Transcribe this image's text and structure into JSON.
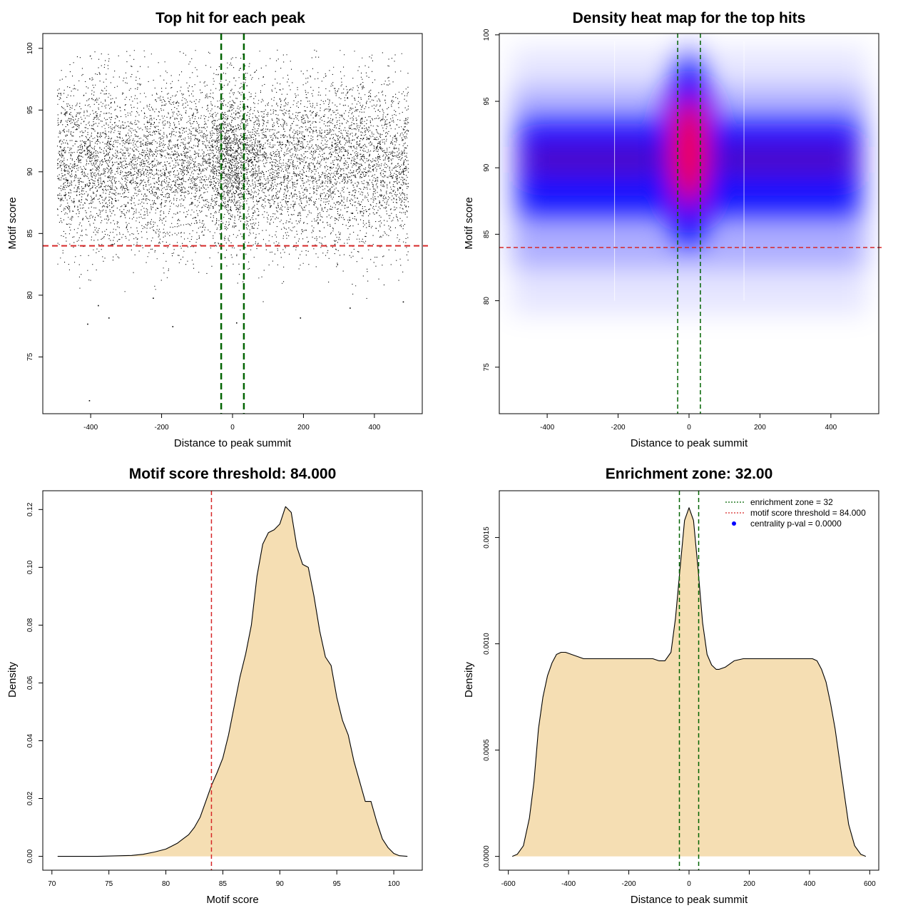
{
  "colors": {
    "zone_line": "#006400",
    "threshold_line": "#d62728",
    "density_fill": "#f5deb3",
    "points": "#000000",
    "heat_low": "#ffffff",
    "heat_mid": "#0000ff",
    "heat_high": "#ff0000",
    "legend_dot": "#0000ff"
  },
  "chart_data": [
    {
      "id": "scatter",
      "type": "scatter",
      "title": "Top hit for each peak",
      "xlabel": "Distance to peak summit",
      "ylabel": "Motif score",
      "xlim": [
        -535,
        535
      ],
      "ylim": [
        70.4,
        101.2
      ],
      "xticks": [
        -400,
        -200,
        0,
        200,
        400
      ],
      "yticks": [
        75,
        80,
        85,
        90,
        95,
        100
      ],
      "zone_lines": [
        -32,
        32
      ],
      "threshold": 84.0,
      "x_range_of_points": [
        -495,
        495
      ],
      "score_mean": 90.8,
      "score_sd": 3.4,
      "central_peak_score": 91.0,
      "outlier_points": [
        {
          "x": -410,
          "y": 77.7
        },
        {
          "x": -380,
          "y": 79.2
        },
        {
          "x": -225,
          "y": 79.8
        },
        {
          "x": -170,
          "y": 77.5
        },
        {
          "x": -350,
          "y": 78.2
        },
        {
          "x": 10,
          "y": 77.8
        },
        {
          "x": 190,
          "y": 78.2
        },
        {
          "x": 330,
          "y": 79.0
        },
        {
          "x": 480,
          "y": 79.5
        },
        {
          "x": -405,
          "y": 71.5
        }
      ]
    },
    {
      "id": "heatmap",
      "type": "heatmap",
      "title": "Density heat map for the top hits",
      "xlabel": "Distance to peak summit",
      "ylabel": "Motif score",
      "xlim": [
        -535,
        535
      ],
      "ylim": [
        71.5,
        100.1
      ],
      "xticks": [
        -400,
        -200,
        0,
        200,
        400
      ],
      "yticks": [
        75,
        80,
        85,
        90,
        95,
        100
      ],
      "zone_lines": [
        -32,
        32
      ],
      "threshold": 84.0,
      "band_center_score": 90.7,
      "center_hotspot": {
        "x": 0,
        "y": 91.2
      }
    },
    {
      "id": "score-density",
      "type": "area",
      "title": "Motif score threshold: 84.000",
      "xlabel": "Motif score",
      "ylabel": "Density",
      "xlim": [
        69.2,
        102.5
      ],
      "ylim": [
        -0.0048,
        0.1265
      ],
      "xticks": [
        70,
        75,
        80,
        85,
        90,
        95,
        100
      ],
      "yticks": [
        0.0,
        0.02,
        0.04,
        0.06,
        0.08,
        0.1,
        0.12
      ],
      "ytick_labels": [
        "0.00",
        "0.02",
        "0.04",
        "0.06",
        "0.08",
        "0.10",
        "0.12"
      ],
      "threshold": 84.0,
      "x": [
        70.5,
        74,
        77,
        78,
        79,
        80,
        80.5,
        81,
        81.5,
        82,
        82.5,
        83,
        83.5,
        84,
        84.5,
        85,
        85.5,
        86,
        86.5,
        87,
        87.5,
        88,
        88.5,
        89,
        89.5,
        90,
        90.5,
        91,
        91.5,
        92,
        92.5,
        93,
        93.5,
        94,
        94.5,
        95,
        95.5,
        96,
        96.5,
        97,
        97.5,
        98,
        98.5,
        99,
        99.5,
        100,
        100.5,
        101.2
      ],
      "y": [
        0.0,
        0.0,
        0.0003,
        0.0007,
        0.0015,
        0.0025,
        0.0035,
        0.0045,
        0.006,
        0.0075,
        0.01,
        0.0135,
        0.019,
        0.0245,
        0.029,
        0.034,
        0.042,
        0.052,
        0.062,
        0.07,
        0.08,
        0.097,
        0.108,
        0.112,
        0.113,
        0.115,
        0.121,
        0.119,
        0.107,
        0.101,
        0.1,
        0.09,
        0.078,
        0.069,
        0.066,
        0.055,
        0.047,
        0.042,
        0.033,
        0.026,
        0.019,
        0.019,
        0.012,
        0.006,
        0.003,
        0.001,
        0.0002,
        0.0
      ]
    },
    {
      "id": "distance-density",
      "type": "area",
      "title": "Enrichment zone: 32.00",
      "xlabel": "Distance to peak summit",
      "ylabel": "Density",
      "xlim": [
        -630,
        630
      ],
      "ylim": [
        -6.5e-05,
        0.00172
      ],
      "xticks": [
        -600,
        -400,
        -200,
        0,
        200,
        400,
        600
      ],
      "yticks": [
        0.0,
        0.0005,
        0.001,
        0.0015
      ],
      "ytick_labels": [
        "0.0000",
        "0.0005",
        "0.0010",
        "0.0015"
      ],
      "zone_lines": [
        -32,
        32
      ],
      "x": [
        -587,
        -570,
        -550,
        -530,
        -515,
        -500,
        -485,
        -470,
        -455,
        -440,
        -425,
        -410,
        -390,
        -370,
        -350,
        -330,
        -300,
        -270,
        -240,
        -210,
        -180,
        -150,
        -120,
        -100,
        -80,
        -60,
        -45,
        -30,
        -15,
        0,
        15,
        30,
        45,
        60,
        75,
        90,
        100,
        120,
        150,
        180,
        210,
        240,
        270,
        300,
        330,
        360,
        380,
        395,
        410,
        425,
        440,
        455,
        470,
        485,
        500,
        515,
        530,
        550,
        570,
        587
      ],
      "y": [
        0.0,
        1e-05,
        5e-05,
        0.00018,
        0.00035,
        0.0006,
        0.00075,
        0.00085,
        0.00091,
        0.00095,
        0.00096,
        0.00096,
        0.00095,
        0.00094,
        0.00093,
        0.00093,
        0.00093,
        0.00093,
        0.00093,
        0.00093,
        0.00093,
        0.00093,
        0.00093,
        0.00092,
        0.00092,
        0.00096,
        0.00112,
        0.00135,
        0.00158,
        0.00164,
        0.00158,
        0.00135,
        0.0011,
        0.00095,
        0.0009,
        0.00088,
        0.00088,
        0.00089,
        0.00092,
        0.00093,
        0.00093,
        0.00093,
        0.00093,
        0.00093,
        0.00093,
        0.00093,
        0.00093,
        0.00093,
        0.00093,
        0.00092,
        0.00088,
        0.00082,
        0.00072,
        0.0006,
        0.00045,
        0.0003,
        0.00015,
        5e-05,
        1e-05,
        0.0
      ],
      "legend": {
        "placement": "top-right",
        "items": [
          {
            "label": "enrichment zone = 32",
            "kind": "dotted-line",
            "color": "#006400"
          },
          {
            "label": "motif score threshold = 84.000",
            "kind": "dotted-line",
            "color": "#d62728"
          },
          {
            "label": "centrality p-val = 0.0000",
            "kind": "dot",
            "color": "#0000ff"
          }
        ]
      }
    }
  ]
}
